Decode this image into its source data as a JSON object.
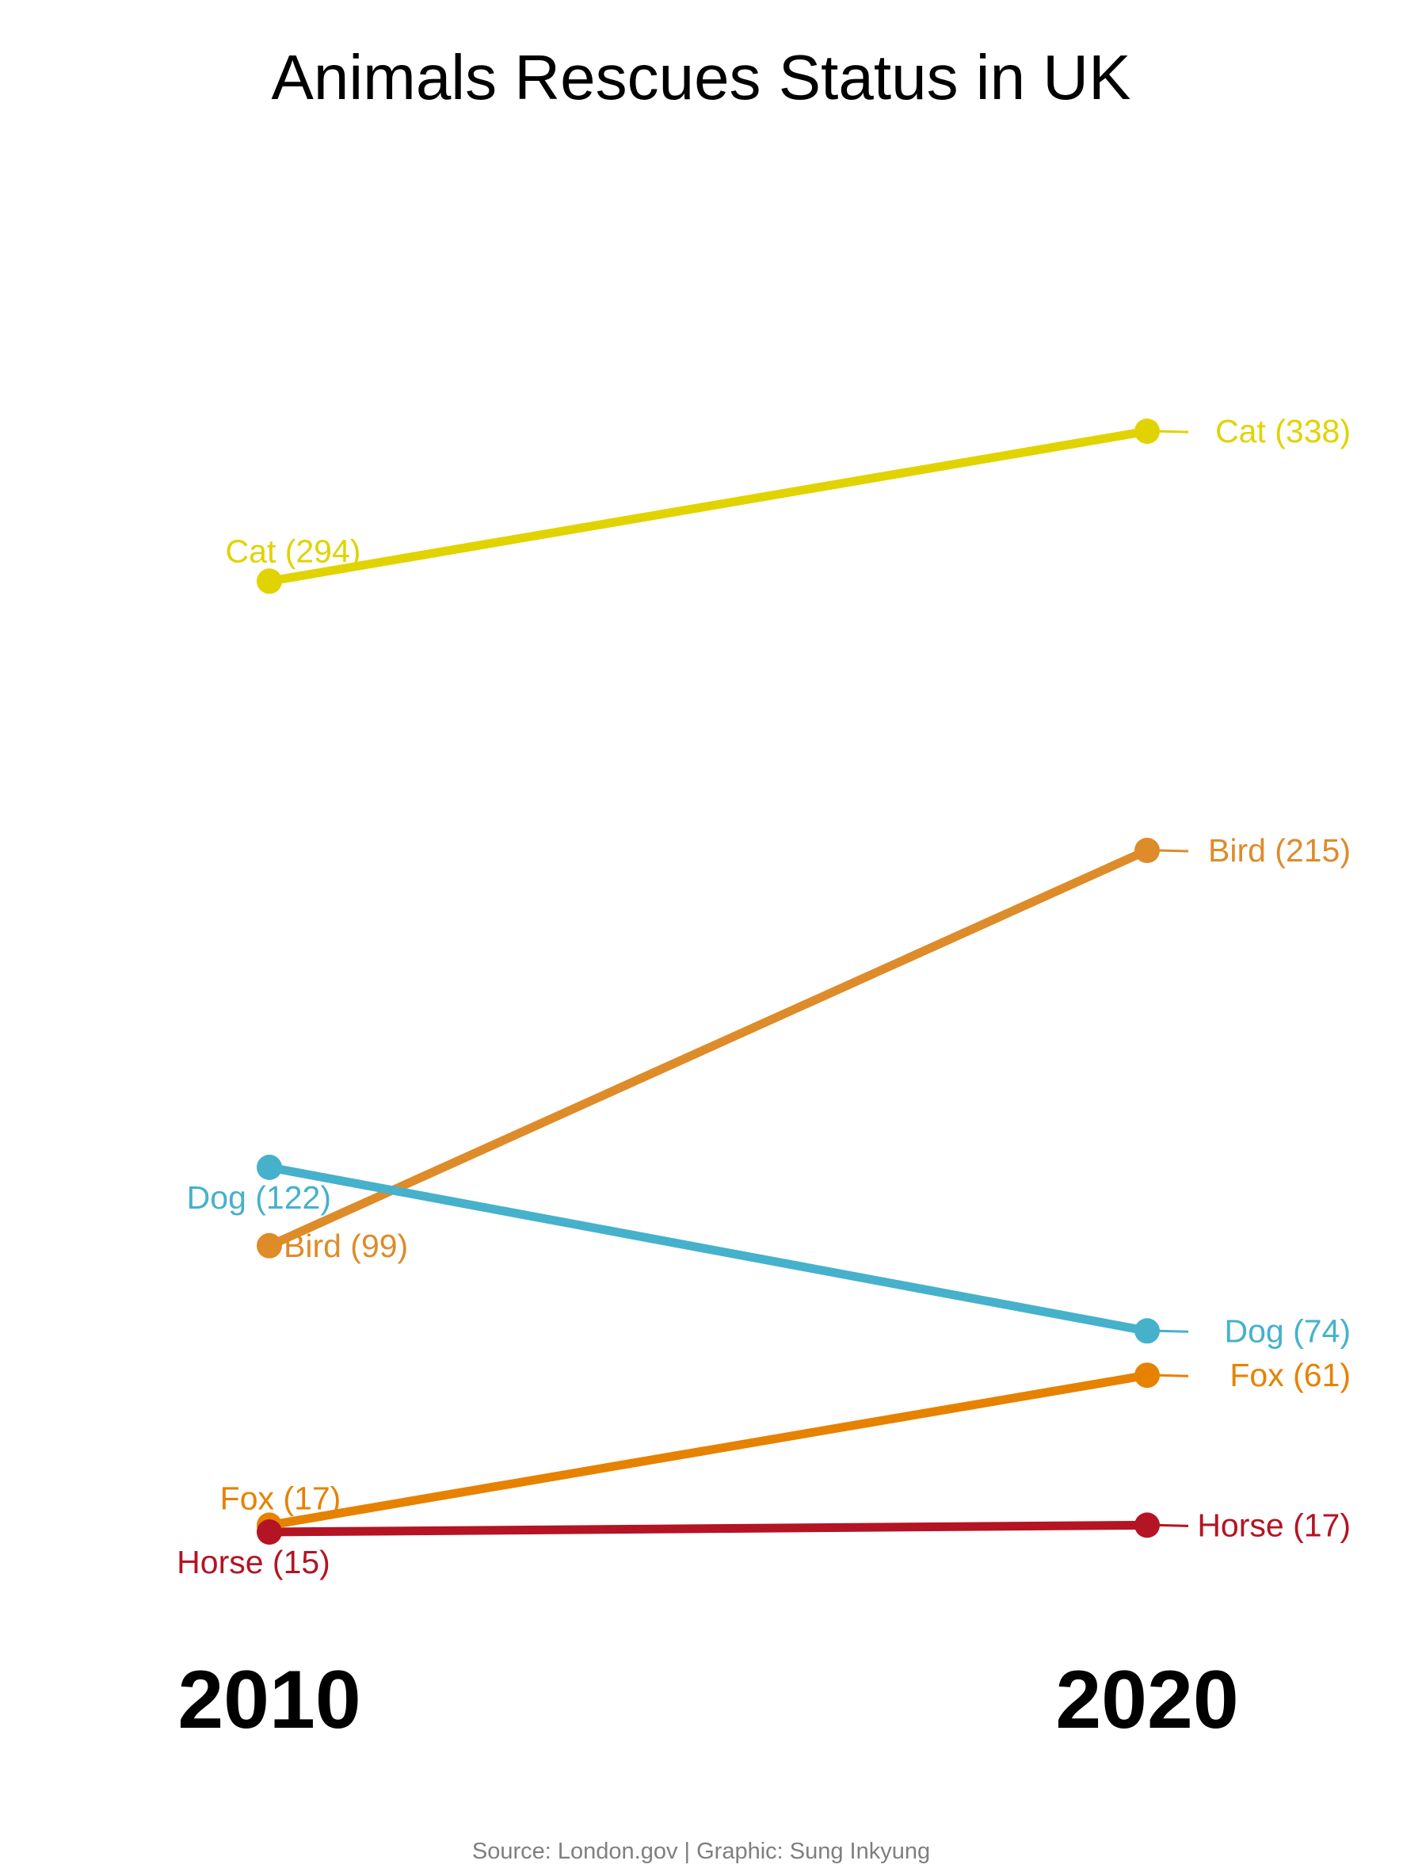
{
  "chart_data": {
    "type": "line",
    "title": "Animals Rescues Status in UK",
    "caption": "Source: London.gov | Graphic: Sung Inkyung",
    "x": [
      "2010",
      "2020"
    ],
    "ylim": [
      0,
      360
    ],
    "grid": false,
    "legend": "none",
    "series": [
      {
        "name": "Cat",
        "values": [
          294,
          338
        ],
        "color": "#E1D300",
        "labels": [
          "Cat (294)",
          "Cat (338)"
        ]
      },
      {
        "name": "Bird",
        "values": [
          99,
          215
        ],
        "color": "#DE8B2A",
        "labels": [
          "Bird (99)",
          "Bird (215)"
        ]
      },
      {
        "name": "Dog",
        "values": [
          122,
          74
        ],
        "color": "#46B1CB",
        "labels": [
          "Dog (122)",
          "Dog (74)"
        ]
      },
      {
        "name": "Fox",
        "values": [
          17,
          61
        ],
        "color": "#E68200",
        "labels": [
          "Fox (17)",
          "Fox (61)"
        ]
      },
      {
        "name": "Horse",
        "values": [
          15,
          17
        ],
        "color": "#B41423",
        "labels": [
          "Horse (15)",
          "Horse (17)"
        ]
      }
    ]
  }
}
